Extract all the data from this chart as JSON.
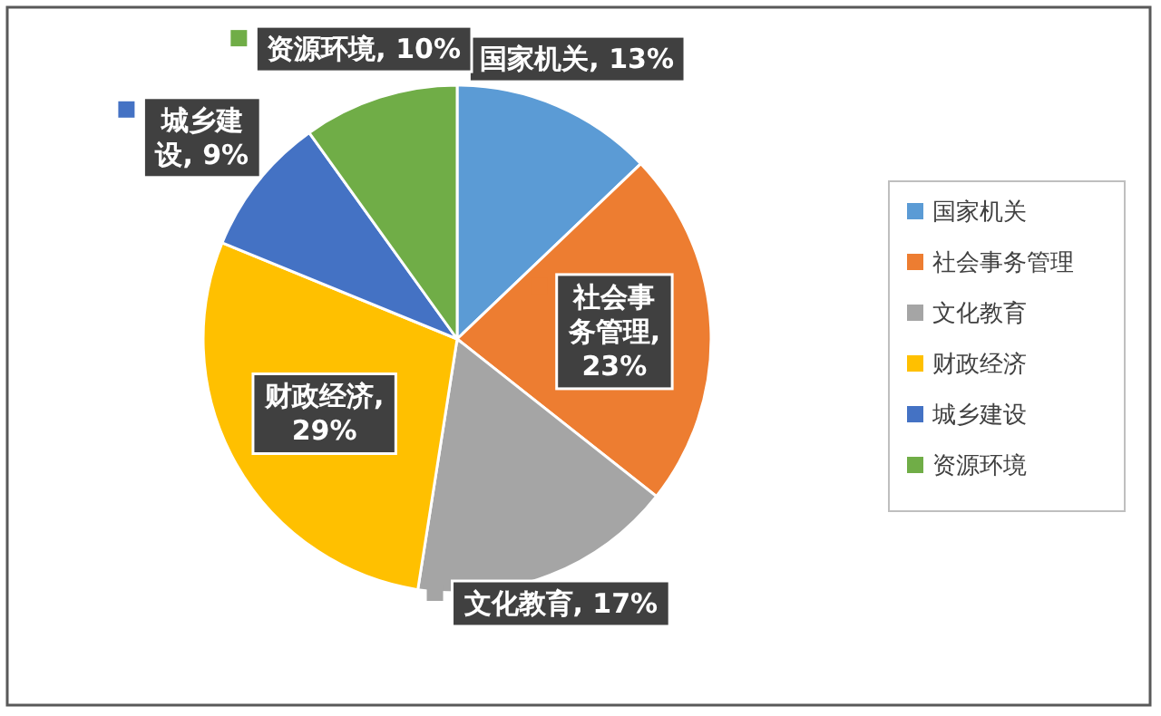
{
  "chart_data": {
    "type": "pie",
    "categories": [
      "国家机关",
      "社会事务管理",
      "文化教育",
      "财政经济",
      "城乡建设",
      "资源环境"
    ],
    "values": [
      13,
      23,
      17,
      29,
      9,
      10
    ],
    "value_labels": [
      "国家机关, 13%",
      "社会事务管理, 23%",
      "文化教育, 17%",
      "财政经济, 29%",
      "城乡建设, 9%",
      "资源环境, 10%"
    ],
    "colors": [
      "#5b9bd5",
      "#ed7d31",
      "#a5a5a5",
      "#ffc000",
      "#4472c4",
      "#70ad47"
    ],
    "legend": "right"
  }
}
